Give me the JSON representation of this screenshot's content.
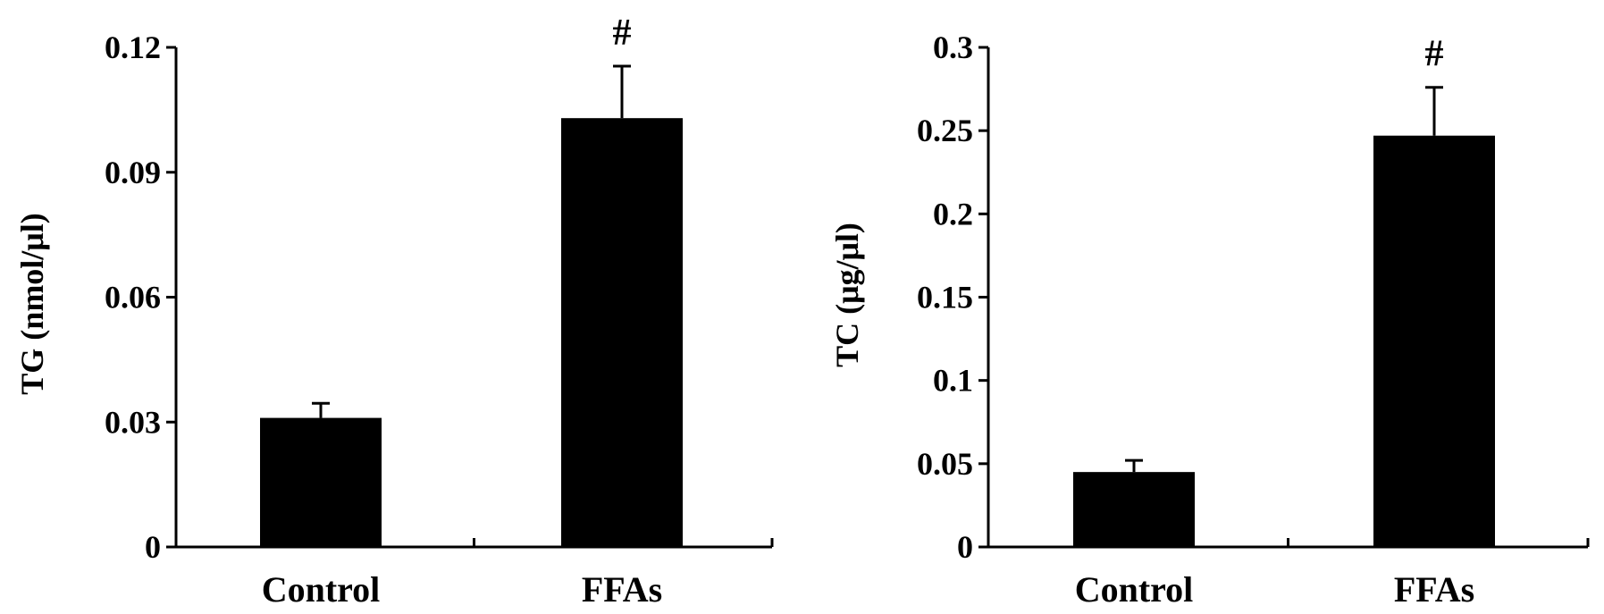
{
  "chart_data": [
    {
      "type": "bar",
      "ylabel": "TG (nmol/μl)",
      "categories": [
        "Control",
        "FFAs"
      ],
      "values": [
        0.031,
        0.103
      ],
      "errors": [
        0.0035,
        0.0125
      ],
      "significance": [
        "",
        "#"
      ],
      "ylim": [
        0,
        0.12
      ],
      "yticks": [
        0,
        0.03,
        0.06,
        0.09,
        0.12
      ],
      "ytick_labels": [
        "0",
        "0.03",
        "0.06",
        "0.09",
        "0.12"
      ],
      "bar_color": "#000000",
      "grid": false
    },
    {
      "type": "bar",
      "ylabel": "TC (μg/μl)",
      "categories": [
        "Control",
        "FFAs"
      ],
      "values": [
        0.045,
        0.247
      ],
      "errors": [
        0.007,
        0.029
      ],
      "significance": [
        "",
        "#"
      ],
      "ylim": [
        0,
        0.3
      ],
      "yticks": [
        0,
        0.05,
        0.1,
        0.15,
        0.2,
        0.25,
        0.3
      ],
      "ytick_labels": [
        "0",
        "0.05",
        "0.1",
        "0.15",
        "0.2",
        "0.25",
        "0.3"
      ],
      "bar_color": "#000000",
      "grid": false
    }
  ]
}
